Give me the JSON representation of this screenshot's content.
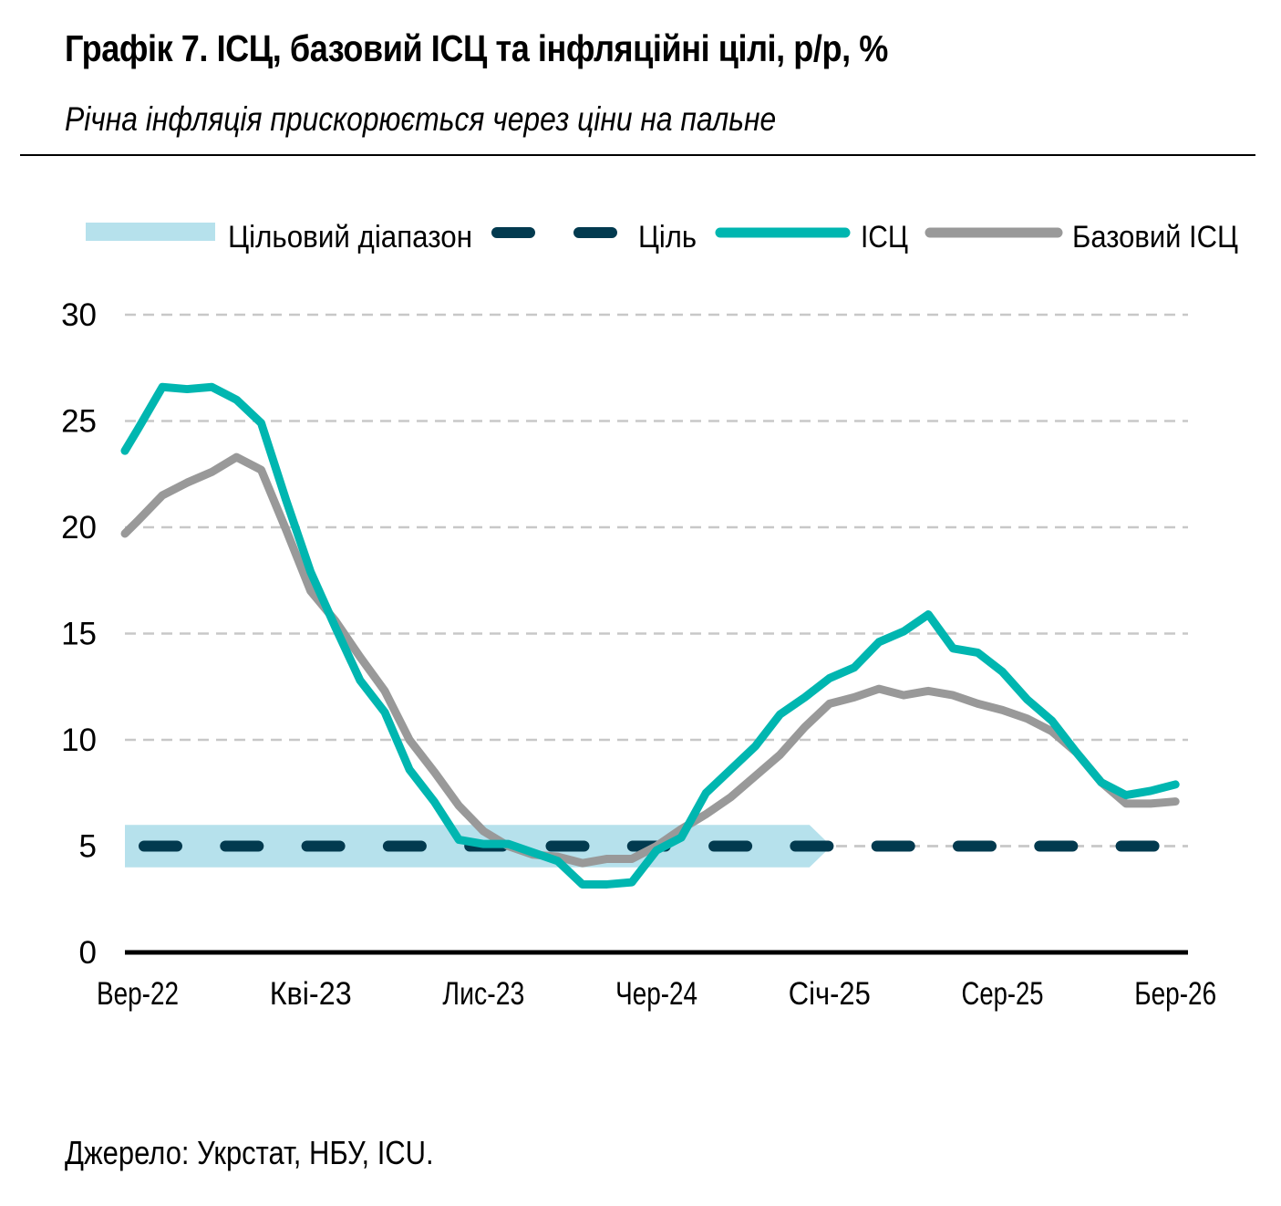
{
  "title": "Графік 7. ІСЦ, базовий ІСЦ та інфляційні цілі, р/р, %",
  "subtitle": "Річна інфляція прискорюється через ціни на пальне",
  "source": "Джерело: Укрстат, НБУ, ICU.",
  "colors": {
    "band": "#b6e1ec",
    "target": "#023a4f",
    "cpi": "#00b6b0",
    "core": "#999999",
    "grid": "#c8c8c8",
    "axis": "#000000"
  },
  "chart_data": {
    "type": "line",
    "title": "Графік 7. ІСЦ, базовий ІСЦ та інфляційні цілі, р/р, %",
    "xlabel": "",
    "ylabel": "",
    "ylim": [
      0,
      30
    ],
    "yticks": [
      "0",
      "5",
      "10",
      "15",
      "20",
      "25",
      "30"
    ],
    "xtick_labels": [
      "Вер-22",
      "Кві-23",
      "Лис-23",
      "Чер-24",
      "Січ-25",
      "Сер-25",
      "Бер-26"
    ],
    "xtick_every_months": 7,
    "months_count": 43,
    "grid": true,
    "legend_position": "top",
    "legend": [
      "Цільовий діапазон",
      "Ціль",
      "ІСЦ",
      "Базовий ІСЦ"
    ],
    "target_band": {
      "low": 4,
      "high": 6,
      "from_index": 0,
      "to_index": 28
    },
    "target": 5,
    "series": [
      {
        "name": "ІСЦ",
        "values": [
          24.6,
          26.6,
          26.5,
          26.6,
          26.0,
          24.9,
          21.3,
          17.9,
          15.3,
          12.8,
          11.3,
          8.6,
          7.1,
          5.3,
          5.1,
          5.1,
          4.7,
          4.3,
          3.2,
          3.2,
          3.3,
          4.8,
          5.4,
          7.5,
          8.6,
          9.7,
          11.2,
          12.0,
          12.9,
          13.4,
          14.6,
          15.1,
          15.9,
          14.3,
          14.1,
          13.2,
          11.9,
          10.9,
          9.4,
          8.0,
          7.4,
          7.6,
          7.9
        ]
      },
      {
        "name": "Базовий ІСЦ",
        "values": [
          20.3,
          21.5,
          22.1,
          22.6,
          23.3,
          22.7,
          19.9,
          17.0,
          15.6,
          13.9,
          12.3,
          10.0,
          8.5,
          6.9,
          5.7,
          5.0,
          4.6,
          4.5,
          4.2,
          4.4,
          4.4,
          5.0,
          5.8,
          6.5,
          7.3,
          8.3,
          9.3,
          10.6,
          11.7,
          12.0,
          12.4,
          12.1,
          12.3,
          12.1,
          11.7,
          11.4,
          11.0,
          10.4,
          9.4,
          8.0,
          7.0,
          7.0,
          7.1
        ]
      }
    ]
  }
}
